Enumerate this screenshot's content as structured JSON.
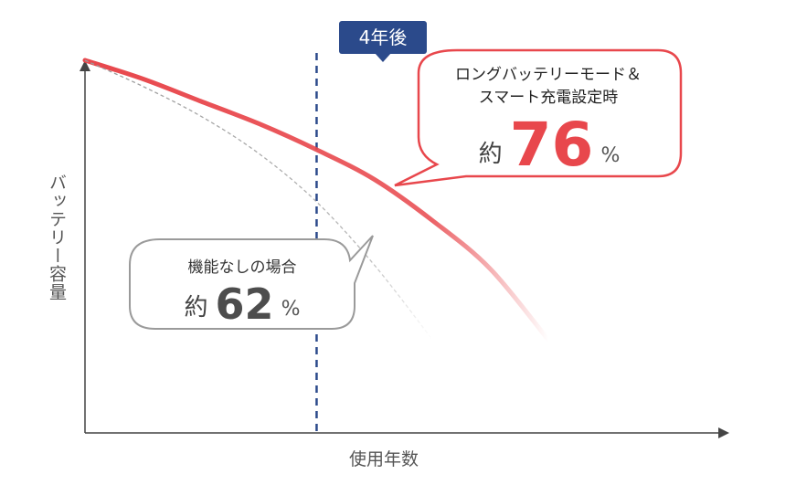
{
  "chart_data": {
    "type": "line",
    "xlabel": "使用年数",
    "ylabel": "バッテリー容量",
    "marker_label": "4年後",
    "marker_x": 4,
    "xlim": [
      0,
      11
    ],
    "ylim": [
      0,
      100
    ],
    "series": [
      {
        "key": "optimized",
        "color": "#e8474c",
        "style": "solid",
        "x": [
          0,
          1,
          2,
          3,
          4,
          5,
          6,
          7,
          8
        ],
        "y": [
          100,
          95,
          89,
          83,
          76,
          68,
          57,
          44,
          25
        ]
      },
      {
        "key": "no_feature",
        "color": "#aaaaaa",
        "style": "dashed",
        "x": [
          0,
          1,
          2,
          3,
          4,
          5,
          6
        ],
        "y": [
          100,
          93,
          85,
          75,
          62,
          45,
          25
        ]
      }
    ],
    "annotations": [
      {
        "title_lines": [
          "ロングバッテリーモード＆",
          "スマート充電設定時"
        ],
        "prefix": "約",
        "value": "76",
        "unit": "%"
      },
      {
        "title_lines": [
          "機能なしの場合"
        ],
        "prefix": "約",
        "value": "62",
        "unit": "%"
      }
    ]
  },
  "colors": {
    "marker": "#2b4a8b",
    "accent": "#e8474c",
    "muted": "#888888"
  }
}
